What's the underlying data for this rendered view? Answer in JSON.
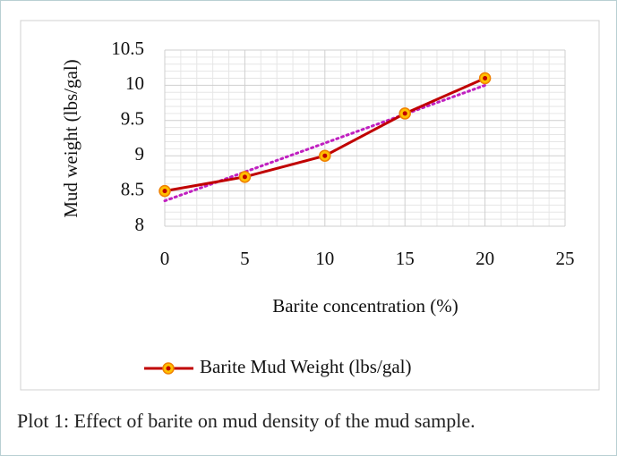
{
  "chart_data": {
    "type": "line",
    "x_label": "Barite concentration (%)",
    "y_label": "Mud weight (lbs/gal)",
    "x": [
      0,
      5,
      10,
      15,
      20
    ],
    "series": [
      {
        "name": "Barite Mud Weight (lbs/gal)",
        "color": "#c00000",
        "marker_color": "#ffc000",
        "values": [
          8.5,
          8.7,
          9.0,
          9.6,
          10.1
        ]
      }
    ],
    "trendline": "linear",
    "trendline_color": "#c020c0",
    "xlim": [
      0,
      25
    ],
    "xticks": [
      0,
      5,
      10,
      15,
      20,
      25
    ],
    "ylim": [
      8,
      10.5
    ],
    "yticks": [
      8,
      8.5,
      9,
      9.5,
      10,
      10.5
    ],
    "grid": true,
    "legend": "bottom"
  },
  "caption": "Plot 1: Effect of barite on mud density of the mud sample."
}
